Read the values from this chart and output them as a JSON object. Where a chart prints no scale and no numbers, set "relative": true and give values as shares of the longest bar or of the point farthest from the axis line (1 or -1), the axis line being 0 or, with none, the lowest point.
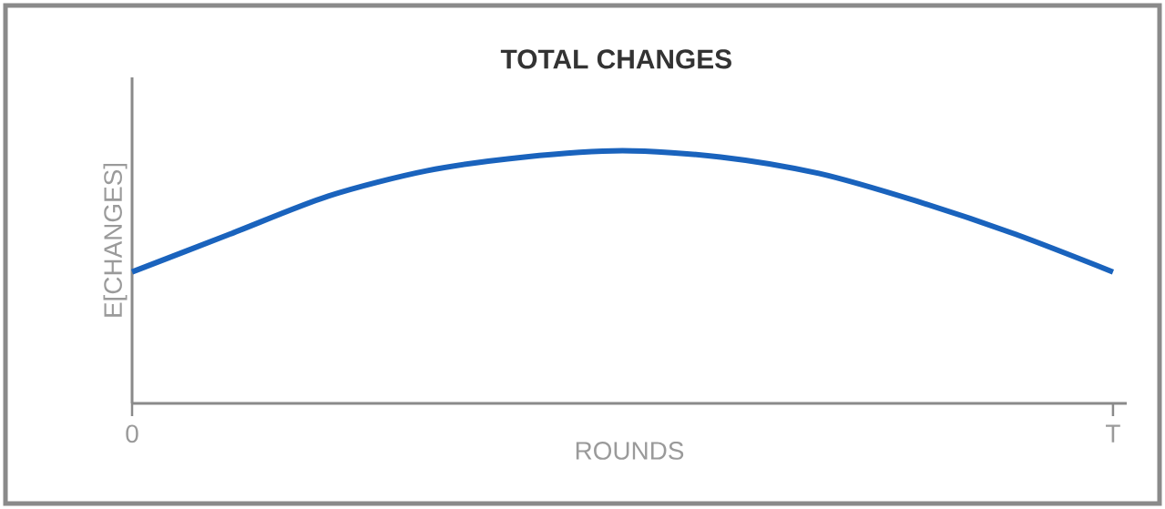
{
  "chart_data": {
    "type": "line",
    "title": "TOTAL CHANGES",
    "xlabel": "ROUNDS",
    "ylabel": "E[CHANGES]",
    "categories": [
      "0",
      null,
      null,
      null,
      null,
      null,
      null,
      null,
      null,
      null,
      "T"
    ],
    "values": [
      0.52,
      0.67,
      0.82,
      0.92,
      0.975,
      1,
      0.975,
      0.91,
      0.8,
      0.67,
      0.52
    ],
    "color": "#1a63bd",
    "relative": true,
    "tick_labels": "x"
  }
}
